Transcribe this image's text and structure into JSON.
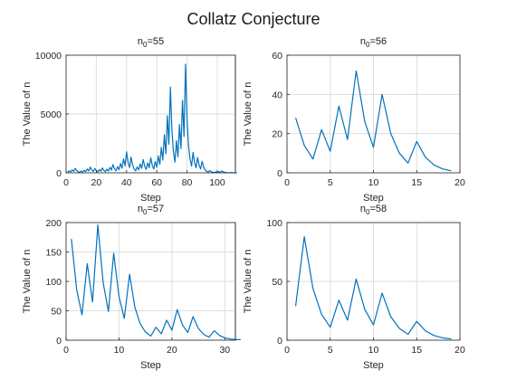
{
  "figure": {
    "title": "Collatz Conjecture",
    "line_color": "#0072BD",
    "grid": true,
    "layout": "2x2"
  },
  "chart_data": [
    {
      "type": "line",
      "title_base": "n",
      "title_sub": "0",
      "title_value": "=55",
      "xlabel": "Step",
      "ylabel": "The Value of n",
      "xlim": [
        0,
        112
      ],
      "ylim": [
        0,
        10000
      ],
      "xticks": [
        0,
        20,
        40,
        60,
        80,
        100
      ],
      "yticks": [
        0,
        5000,
        10000
      ],
      "series": [
        {
          "x": [
            1,
            2,
            3,
            4,
            5,
            6,
            7,
            8,
            9,
            10,
            11,
            12,
            13,
            14,
            15,
            16,
            17,
            18,
            19,
            20,
            21,
            22,
            23,
            24,
            25,
            26,
            27,
            28,
            29,
            30,
            31,
            32,
            33,
            34,
            35,
            36,
            37,
            38,
            39,
            40,
            41,
            42,
            43,
            44,
            45,
            46,
            47,
            48,
            49,
            50,
            51,
            52,
            53,
            54,
            55,
            56,
            57,
            58,
            59,
            60,
            61,
            62,
            63,
            64,
            65,
            66,
            67,
            68,
            69,
            70,
            71,
            72,
            73,
            74,
            75,
            76,
            77,
            78,
            79,
            80,
            81,
            82,
            83,
            84,
            85,
            86,
            87,
            88,
            89,
            90,
            91,
            92,
            93,
            94,
            95,
            96,
            97,
            98,
            99,
            100,
            101,
            102,
            103,
            104,
            105,
            106,
            107,
            108,
            109,
            110,
            111,
            112,
            113
          ],
          "values": [
            55,
            166,
            83,
            250,
            125,
            376,
            188,
            94,
            47,
            142,
            71,
            214,
            107,
            322,
            161,
            484,
            242,
            121,
            364,
            182,
            91,
            274,
            137,
            412,
            206,
            103,
            310,
            155,
            466,
            233,
            700,
            350,
            175,
            526,
            263,
            790,
            395,
            1186,
            593,
            1780,
            890,
            445,
            1336,
            668,
            334,
            167,
            502,
            251,
            754,
            377,
            1132,
            566,
            283,
            850,
            425,
            1276,
            638,
            319,
            958,
            479,
            1438,
            719,
            2158,
            1079,
            3238,
            1619,
            4858,
            2429,
            7288,
            3644,
            1822,
            911,
            2734,
            1367,
            4102,
            2051,
            6154,
            3077,
            9232,
            4616,
            2308,
            1154,
            577,
            1732,
            866,
            433,
            1300,
            650,
            325,
            976,
            488,
            244,
            122,
            61,
            184,
            92,
            46,
            23,
            70,
            35,
            106,
            53,
            160,
            80,
            40,
            20,
            10,
            5,
            16,
            8,
            4,
            2,
            1
          ]
        }
      ]
    },
    {
      "type": "line",
      "title_base": "n",
      "title_sub": "0",
      "title_value": "=56",
      "xlabel": "Step",
      "ylabel": "The Value of n",
      "xlim": [
        0,
        20
      ],
      "ylim": [
        0,
        60
      ],
      "xticks": [
        0,
        5,
        10,
        15,
        20
      ],
      "yticks": [
        0,
        20,
        40,
        60
      ],
      "series": [
        {
          "x": [
            1,
            2,
            3,
            4,
            5,
            6,
            7,
            8,
            9,
            10,
            11,
            12,
            13,
            14,
            15,
            16,
            17,
            18,
            19
          ],
          "values": [
            28,
            14,
            7,
            22,
            11,
            34,
            17,
            52,
            26,
            13,
            40,
            20,
            10,
            5,
            16,
            8,
            4,
            2,
            1
          ]
        }
      ]
    },
    {
      "type": "line",
      "title_base": "n",
      "title_sub": "0",
      "title_value": "=57",
      "xlabel": "Step",
      "ylabel": "The Value of n",
      "xlim": [
        0,
        32
      ],
      "ylim": [
        0,
        200
      ],
      "xticks": [
        0,
        10,
        20,
        30
      ],
      "yticks": [
        0,
        50,
        100,
        150,
        200
      ],
      "series": [
        {
          "x": [
            1,
            2,
            3,
            4,
            5,
            6,
            7,
            8,
            9,
            10,
            11,
            12,
            13,
            14,
            15,
            16,
            17,
            18,
            19,
            20,
            21,
            22,
            23,
            24,
            25,
            26,
            27,
            28,
            29,
            30,
            31,
            32,
            33
          ],
          "values": [
            172,
            86,
            43,
            130,
            65,
            196,
            98,
            49,
            148,
            74,
            37,
            112,
            56,
            28,
            14,
            7,
            22,
            11,
            34,
            17,
            52,
            26,
            13,
            40,
            20,
            10,
            5,
            16,
            8,
            4,
            2,
            1,
            1
          ]
        }
      ]
    },
    {
      "type": "line",
      "title_base": "n",
      "title_sub": "0",
      "title_value": "=58",
      "xlabel": "Step",
      "ylabel": "The Value of n",
      "xlim": [
        0,
        20
      ],
      "ylim": [
        0,
        100
      ],
      "xticks": [
        0,
        5,
        10,
        15,
        20
      ],
      "yticks": [
        0,
        50,
        100
      ],
      "series": [
        {
          "x": [
            1,
            2,
            3,
            4,
            5,
            6,
            7,
            8,
            9,
            10,
            11,
            12,
            13,
            14,
            15,
            16,
            17,
            18,
            19
          ],
          "values": [
            29,
            88,
            44,
            22,
            11,
            34,
            17,
            52,
            26,
            13,
            40,
            20,
            10,
            5,
            16,
            8,
            4,
            2,
            1
          ]
        }
      ]
    }
  ]
}
